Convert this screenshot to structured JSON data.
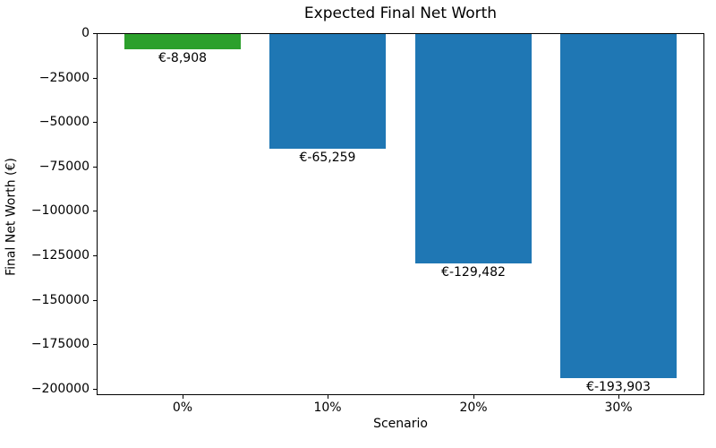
{
  "figure": {
    "background": "#ffffff",
    "text_color": "#000000",
    "axis_color": "#000000"
  },
  "chart_data": {
    "type": "bar",
    "title": "Expected Final Net Worth",
    "xlabel": "Scenario",
    "ylabel": "Final Net Worth (€)",
    "categories": [
      "0%",
      "10%",
      "20%",
      "30%"
    ],
    "values": [
      -8908,
      -65259,
      -129482,
      -193903
    ],
    "bar_labels": [
      "€-8,908",
      "€-65,259",
      "€-129,482",
      "€-193,903"
    ],
    "bar_colors": [
      "#2ca02c",
      "#1f77b4",
      "#1f77b4",
      "#1f77b4"
    ],
    "ylim": [
      -203598,
      0
    ],
    "yticks": [
      0,
      -25000,
      -50000,
      -75000,
      -100000,
      -125000,
      -150000,
      -175000,
      -200000
    ],
    "ytick_labels": [
      "0",
      "−25000",
      "−50000",
      "−75000",
      "−100000",
      "−125000",
      "−150000",
      "−175000",
      "−200000"
    ],
    "grid": false,
    "legend": "none",
    "background": "#ffffff"
  }
}
